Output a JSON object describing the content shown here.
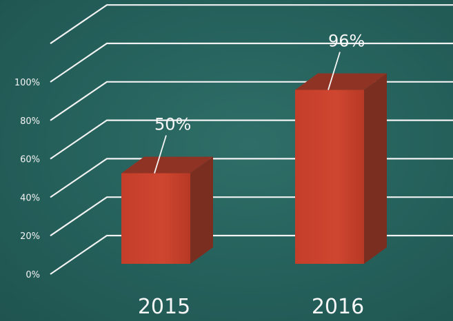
{
  "chart_data": {
    "type": "bar",
    "title": "",
    "xlabel": "",
    "ylabel": "",
    "categories": [
      "2015",
      "2016"
    ],
    "values": [
      50,
      96
    ],
    "data_labels": [
      "50%",
      "96%"
    ],
    "ylim": [
      0,
      100
    ],
    "yticks": [
      0,
      20,
      40,
      60,
      80,
      100
    ],
    "ytick_labels": [
      "0%",
      "20%",
      "40%",
      "60%",
      "80%",
      "100%"
    ],
    "grid": true,
    "legend": "none",
    "colors": {
      "background": "#25605b",
      "bar_front": "#c8412c",
      "bar_side": "#7a2e20",
      "bar_top": "#8f3424",
      "grid": "#f2f2f2",
      "text": "#f7f7f7"
    }
  }
}
